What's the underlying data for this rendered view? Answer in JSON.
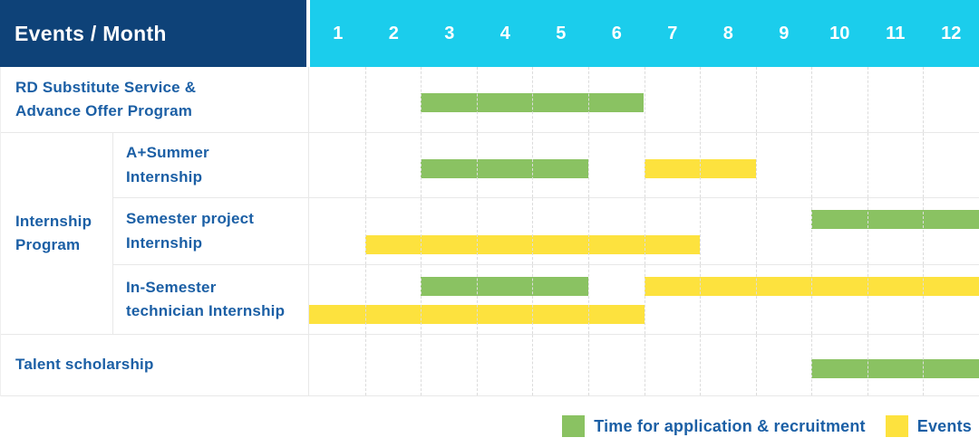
{
  "header": {
    "corner_label": "Events / Month",
    "months": [
      "1",
      "2",
      "3",
      "4",
      "5",
      "6",
      "7",
      "8",
      "9",
      "10",
      "11",
      "12"
    ]
  },
  "group_label": "Internship Program",
  "rows": [
    {
      "label": "RD Substitute Service &\nAdvance Offer Program",
      "bars": [
        {
          "type": "application",
          "span": "3-6",
          "track": "mid"
        }
      ]
    },
    {
      "group": "Internship Program",
      "label": "A+Summer\nInternship",
      "bars": [
        {
          "type": "application",
          "span": "3-5",
          "track": "mid"
        },
        {
          "type": "events",
          "span": "7-8",
          "track": "mid"
        }
      ]
    },
    {
      "group": "Internship Program",
      "label": "Semester project\nInternship",
      "bars": [
        {
          "type": "application",
          "span": "10-12",
          "track": "upper"
        },
        {
          "type": "events",
          "span": "2-7",
          "track": "lower"
        }
      ]
    },
    {
      "group": "Internship Program",
      "label": "In-Semester\ntechnician Internship",
      "bars": [
        {
          "type": "application",
          "span": "3-5",
          "track": "upper"
        },
        {
          "type": "events",
          "span": "7-12",
          "track": "upper"
        },
        {
          "type": "events",
          "span": "1-6",
          "track": "lower"
        }
      ]
    },
    {
      "label": "Talent scholarship",
      "bars": [
        {
          "type": "application",
          "span": "10-12",
          "track": "mid"
        }
      ]
    }
  ],
  "legend": {
    "application": {
      "label": "Time for application & recruitment",
      "color": "#8ac262"
    },
    "events": {
      "label": "Events",
      "color": "#fde23e"
    }
  },
  "colors": {
    "header_bg": "#0e4278",
    "months_bg": "#1bcdec",
    "label_text": "#1b5fa5",
    "bar_application": "#8ac262",
    "bar_events": "#fde23e"
  },
  "chart_data": {
    "type": "gantt",
    "title": "Events / Month",
    "x": {
      "label": "Month",
      "ticks": [
        1,
        2,
        3,
        4,
        5,
        6,
        7,
        8,
        9,
        10,
        11,
        12
      ],
      "range": [
        1,
        12
      ]
    },
    "legend": [
      {
        "name": "Time for application & recruitment",
        "color": "#8ac262"
      },
      {
        "name": "Events",
        "color": "#fde23e"
      }
    ],
    "legend_position": "bottom-right",
    "grid": "dashed vertical month separators",
    "tasks": [
      {
        "group": null,
        "name": "RD Substitute Service & Advance Offer Program",
        "bars": [
          {
            "series": "Time for application & recruitment",
            "start_month": 3,
            "end_month": 6
          }
        ]
      },
      {
        "group": "Internship Program",
        "name": "A+Summer Internship",
        "bars": [
          {
            "series": "Time for application & recruitment",
            "start_month": 3,
            "end_month": 5
          },
          {
            "series": "Events",
            "start_month": 7,
            "end_month": 8
          }
        ]
      },
      {
        "group": "Internship Program",
        "name": "Semester project Internship",
        "bars": [
          {
            "series": "Time for application & recruitment",
            "start_month": 10,
            "end_month": 12
          },
          {
            "series": "Events",
            "start_month": 2,
            "end_month": 7
          }
        ]
      },
      {
        "group": "Internship Program",
        "name": "In-Semester technician Internship",
        "bars": [
          {
            "series": "Time for application & recruitment",
            "start_month": 3,
            "end_month": 5
          },
          {
            "series": "Events",
            "start_month": 7,
            "end_month": 12
          },
          {
            "series": "Events",
            "start_month": 1,
            "end_month": 6
          }
        ]
      },
      {
        "group": null,
        "name": "Talent scholarship",
        "bars": [
          {
            "series": "Time for application & recruitment",
            "start_month": 10,
            "end_month": 12
          }
        ]
      }
    ]
  }
}
